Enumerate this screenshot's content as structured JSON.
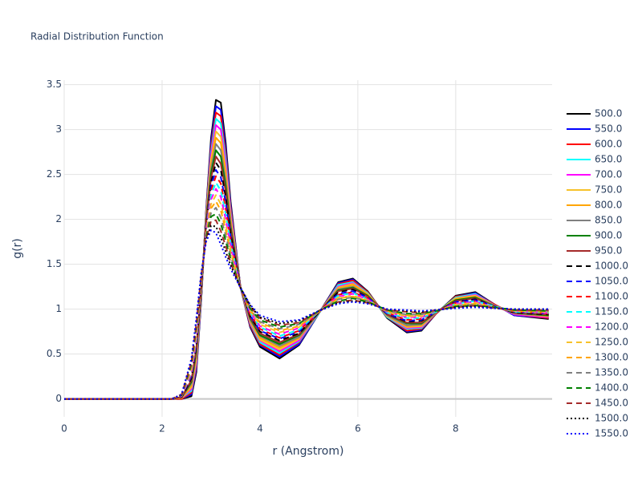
{
  "chart_data": {
    "type": "line",
    "title": "Radial Distribution Function",
    "x_label": "r (Angstrom)",
    "y_label": "g(r)",
    "x": [
      0,
      2.2,
      2.4,
      2.6,
      2.7,
      2.8,
      2.9,
      3.0,
      3.1,
      3.2,
      3.3,
      3.4,
      3.6,
      3.8,
      4.0,
      4.4,
      4.8,
      5.2,
      5.6,
      5.9,
      6.2,
      6.6,
      7.0,
      7.3,
      7.6,
      8.0,
      8.4,
      8.8,
      9.2,
      9.9
    ],
    "xlim": [
      0,
      9.97
    ],
    "xticks": [
      0,
      2,
      4,
      6,
      8
    ],
    "ylim": [
      -0.2,
      3.55
    ],
    "yticks": [
      0,
      0.5,
      1,
      1.5,
      2,
      2.5,
      3,
      3.5
    ],
    "grid": true,
    "series": [
      {
        "name": "500.0",
        "color": "#000000",
        "dash": "solid",
        "values": [
          0,
          0,
          0,
          0.03,
          0.3,
          1.1,
          2.1,
          2.9,
          3.33,
          3.3,
          2.85,
          2.2,
          1.25,
          0.8,
          0.58,
          0.45,
          0.6,
          0.95,
          1.3,
          1.34,
          1.2,
          0.9,
          0.74,
          0.76,
          0.95,
          1.15,
          1.19,
          1.05,
          0.93,
          0.89
        ]
      },
      {
        "name": "550.0",
        "color": "#0000ff",
        "dash": "solid",
        "values": [
          0,
          0,
          0,
          0.05,
          0.33,
          1.11,
          2.08,
          2.85,
          3.26,
          3.22,
          2.79,
          2.16,
          1.25,
          0.81,
          0.6,
          0.47,
          0.61,
          0.95,
          1.29,
          1.33,
          1.19,
          0.91,
          0.75,
          0.77,
          0.95,
          1.14,
          1.18,
          1.05,
          0.93,
          0.9
        ]
      },
      {
        "name": "600.0",
        "color": "#ff0000",
        "dash": "solid",
        "values": [
          0,
          0,
          0,
          0.07,
          0.36,
          1.13,
          2.07,
          2.8,
          3.19,
          3.15,
          2.73,
          2.13,
          1.25,
          0.82,
          0.61,
          0.49,
          0.63,
          0.95,
          1.28,
          1.32,
          1.19,
          0.91,
          0.76,
          0.78,
          0.95,
          1.14,
          1.17,
          1.05,
          0.94,
          0.9
        ]
      },
      {
        "name": "650.0",
        "color": "#00ffff",
        "dash": "solid",
        "values": [
          0,
          0,
          0.01,
          0.09,
          0.39,
          1.14,
          2.05,
          2.75,
          3.12,
          3.07,
          2.67,
          2.09,
          1.25,
          0.84,
          0.63,
          0.51,
          0.64,
          0.95,
          1.27,
          1.3,
          1.18,
          0.91,
          0.78,
          0.79,
          0.96,
          1.13,
          1.17,
          1.04,
          0.94,
          0.91
        ]
      },
      {
        "name": "700.0",
        "color": "#ff00ff",
        "dash": "solid",
        "values": [
          0,
          0,
          0.01,
          0.11,
          0.41,
          1.16,
          2.03,
          2.71,
          3.05,
          3,
          2.61,
          2.06,
          1.25,
          0.85,
          0.65,
          0.53,
          0.65,
          0.96,
          1.25,
          1.29,
          1.17,
          0.92,
          0.79,
          0.8,
          0.96,
          1.12,
          1.16,
          1.04,
          0.94,
          0.91
        ]
      },
      {
        "name": "750.0",
        "color": "#f7c22b",
        "dash": "solid",
        "values": [
          0,
          0,
          0.01,
          0.13,
          0.44,
          1.17,
          2.02,
          2.66,
          2.98,
          2.92,
          2.55,
          2.02,
          1.25,
          0.86,
          0.66,
          0.55,
          0.67,
          0.96,
          1.24,
          1.28,
          1.17,
          0.92,
          0.8,
          0.81,
          0.96,
          1.12,
          1.15,
          1.04,
          0.95,
          0.92
        ]
      },
      {
        "name": "800.0",
        "color": "#ffa500",
        "dash": "solid",
        "values": [
          0,
          0,
          0.01,
          0.15,
          0.47,
          1.19,
          2,
          2.61,
          2.91,
          2.85,
          2.49,
          1.99,
          1.25,
          0.87,
          0.68,
          0.57,
          0.68,
          0.96,
          1.23,
          1.27,
          1.16,
          0.93,
          0.81,
          0.82,
          0.96,
          1.11,
          1.14,
          1.04,
          0.95,
          0.92
        ]
      },
      {
        "name": "850.0",
        "color": "#808080",
        "dash": "solid",
        "values": [
          0,
          0,
          0.02,
          0.17,
          0.5,
          1.2,
          1.98,
          2.56,
          2.84,
          2.77,
          2.43,
          1.95,
          1.25,
          0.88,
          0.7,
          0.59,
          0.69,
          0.96,
          1.22,
          1.25,
          1.15,
          0.93,
          0.82,
          0.83,
          0.96,
          1.1,
          1.13,
          1.04,
          0.95,
          0.93
        ]
      },
      {
        "name": "900.0",
        "color": "#008000",
        "dash": "solid",
        "values": [
          0,
          0,
          0.02,
          0.19,
          0.53,
          1.21,
          1.97,
          2.51,
          2.77,
          2.7,
          2.37,
          1.91,
          1.25,
          0.9,
          0.71,
          0.61,
          0.71,
          0.96,
          1.21,
          1.24,
          1.15,
          0.94,
          0.84,
          0.84,
          0.97,
          1.1,
          1.13,
          1.03,
          0.96,
          0.93
        ]
      },
      {
        "name": "950.0",
        "color": "#a52a2a",
        "dash": "solid",
        "values": [
          0,
          0,
          0.02,
          0.21,
          0.56,
          1.23,
          1.95,
          2.46,
          2.7,
          2.62,
          2.31,
          1.88,
          1.25,
          0.91,
          0.73,
          0.63,
          0.72,
          0.96,
          1.2,
          1.23,
          1.14,
          0.94,
          0.85,
          0.85,
          0.97,
          1.09,
          1.12,
          1.03,
          0.96,
          0.94
        ]
      },
      {
        "name": "1000.0",
        "color": "#000000",
        "dash": "dash",
        "values": [
          0,
          0,
          0.02,
          0.23,
          0.59,
          1.24,
          1.93,
          2.41,
          2.63,
          2.55,
          2.25,
          1.84,
          1.25,
          0.92,
          0.75,
          0.65,
          0.73,
          0.96,
          1.19,
          1.22,
          1.13,
          0.95,
          0.86,
          0.87,
          0.97,
          1.08,
          1.11,
          1.03,
          0.96,
          0.94
        ]
      },
      {
        "name": "1050.0",
        "color": "#0000ff",
        "dash": "dash",
        "values": [
          0,
          0,
          0.03,
          0.25,
          0.61,
          1.26,
          1.92,
          2.37,
          2.55,
          2.47,
          2.19,
          1.81,
          1.24,
          0.93,
          0.76,
          0.67,
          0.75,
          0.97,
          1.17,
          1.2,
          1.13,
          0.95,
          0.87,
          0.88,
          0.97,
          1.08,
          1.1,
          1.03,
          0.97,
          0.95
        ]
      },
      {
        "name": "1100.0",
        "color": "#ff0000",
        "dash": "dash",
        "values": [
          0,
          0,
          0.03,
          0.27,
          0.64,
          1.27,
          1.9,
          2.32,
          2.48,
          2.4,
          2.12,
          1.77,
          1.24,
          0.94,
          0.78,
          0.68,
          0.76,
          0.97,
          1.16,
          1.19,
          1.12,
          0.96,
          0.88,
          0.89,
          0.97,
          1.07,
          1.09,
          1.03,
          0.97,
          0.95
        ]
      },
      {
        "name": "1150.0",
        "color": "#00ffff",
        "dash": "dash",
        "values": [
          0,
          0,
          0.03,
          0.29,
          0.67,
          1.29,
          1.88,
          2.27,
          2.41,
          2.32,
          2.06,
          1.74,
          1.24,
          0.96,
          0.8,
          0.7,
          0.77,
          0.97,
          1.15,
          1.18,
          1.11,
          0.96,
          0.9,
          0.9,
          0.97,
          1.06,
          1.09,
          1.03,
          0.97,
          0.96
        ]
      },
      {
        "name": "1200.0",
        "color": "#ff00ff",
        "dash": "dash",
        "values": [
          0,
          0,
          0.03,
          0.31,
          0.7,
          1.3,
          1.87,
          2.22,
          2.34,
          2.25,
          2,
          1.7,
          1.24,
          0.97,
          0.81,
          0.72,
          0.79,
          0.97,
          1.14,
          1.17,
          1.11,
          0.97,
          0.91,
          0.91,
          0.98,
          1.06,
          1.08,
          1.02,
          0.98,
          0.96
        ]
      },
      {
        "name": "1250.0",
        "color": "#f7c22b",
        "dash": "dash",
        "values": [
          0,
          0,
          0.04,
          0.33,
          0.73,
          1.31,
          1.85,
          2.17,
          2.27,
          2.17,
          1.94,
          1.66,
          1.24,
          0.98,
          0.83,
          0.74,
          0.8,
          0.97,
          1.13,
          1.15,
          1.1,
          0.97,
          0.92,
          0.92,
          0.98,
          1.05,
          1.07,
          1.02,
          0.98,
          0.97
        ]
      },
      {
        "name": "1300.0",
        "color": "#ffa500",
        "dash": "dash",
        "values": [
          0,
          0,
          0.04,
          0.35,
          0.76,
          1.33,
          1.83,
          2.12,
          2.2,
          2.1,
          1.88,
          1.63,
          1.24,
          0.99,
          0.85,
          0.76,
          0.81,
          0.97,
          1.12,
          1.14,
          1.09,
          0.98,
          0.93,
          0.93,
          0.98,
          1.04,
          1.06,
          1.02,
          0.98,
          0.97
        ]
      },
      {
        "name": "1350.0",
        "color": "#808080",
        "dash": "dash",
        "values": [
          0,
          0,
          0.04,
          0.37,
          0.79,
          1.34,
          1.82,
          2.07,
          2.13,
          2.02,
          1.82,
          1.59,
          1.24,
          1,
          0.86,
          0.78,
          0.83,
          0.97,
          1.11,
          1.13,
          1.09,
          0.98,
          0.94,
          0.94,
          0.98,
          1.04,
          1.05,
          1.02,
          0.99,
          0.98
        ]
      },
      {
        "name": "1400.0",
        "color": "#008000",
        "dash": "dash",
        "values": [
          0,
          0,
          0.04,
          0.39,
          0.81,
          1.36,
          1.8,
          2.03,
          2.06,
          1.95,
          1.76,
          1.56,
          1.24,
          1.01,
          0.88,
          0.8,
          0.84,
          0.98,
          1.09,
          1.12,
          1.08,
          0.99,
          0.95,
          0.95,
          0.98,
          1.03,
          1.04,
          1.02,
          0.99,
          0.98
        ]
      },
      {
        "name": "1450.0",
        "color": "#a52a2a",
        "dash": "dash",
        "values": [
          0,
          0,
          0.05,
          0.41,
          0.84,
          1.37,
          1.78,
          1.98,
          1.99,
          1.87,
          1.7,
          1.52,
          1.24,
          1.03,
          0.9,
          0.82,
          0.85,
          0.98,
          1.08,
          1.1,
          1.07,
          0.99,
          0.97,
          0.96,
          0.99,
          1.02,
          1.04,
          1.01,
          0.99,
          0.99
        ]
      },
      {
        "name": "1500.0",
        "color": "#000000",
        "dash": "dot",
        "values": [
          0,
          0,
          0.05,
          0.43,
          0.87,
          1.39,
          1.77,
          1.93,
          1.92,
          1.8,
          1.64,
          1.49,
          1.24,
          1.04,
          0.91,
          0.84,
          0.87,
          0.98,
          1.07,
          1.09,
          1.07,
          1,
          0.98,
          0.97,
          0.99,
          1.02,
          1.03,
          1.01,
          1,
          1
        ]
      },
      {
        "name": "1550.0",
        "color": "#0000ff",
        "dash": "dot",
        "values": [
          0,
          0,
          0.05,
          0.45,
          0.9,
          1.4,
          1.75,
          1.88,
          1.85,
          1.72,
          1.58,
          1.45,
          1.24,
          1.05,
          0.93,
          0.86,
          0.88,
          0.98,
          1.06,
          1.08,
          1.06,
          1,
          0.99,
          0.98,
          0.99,
          1.01,
          1.02,
          1.01,
          1,
          1
        ]
      }
    ]
  }
}
